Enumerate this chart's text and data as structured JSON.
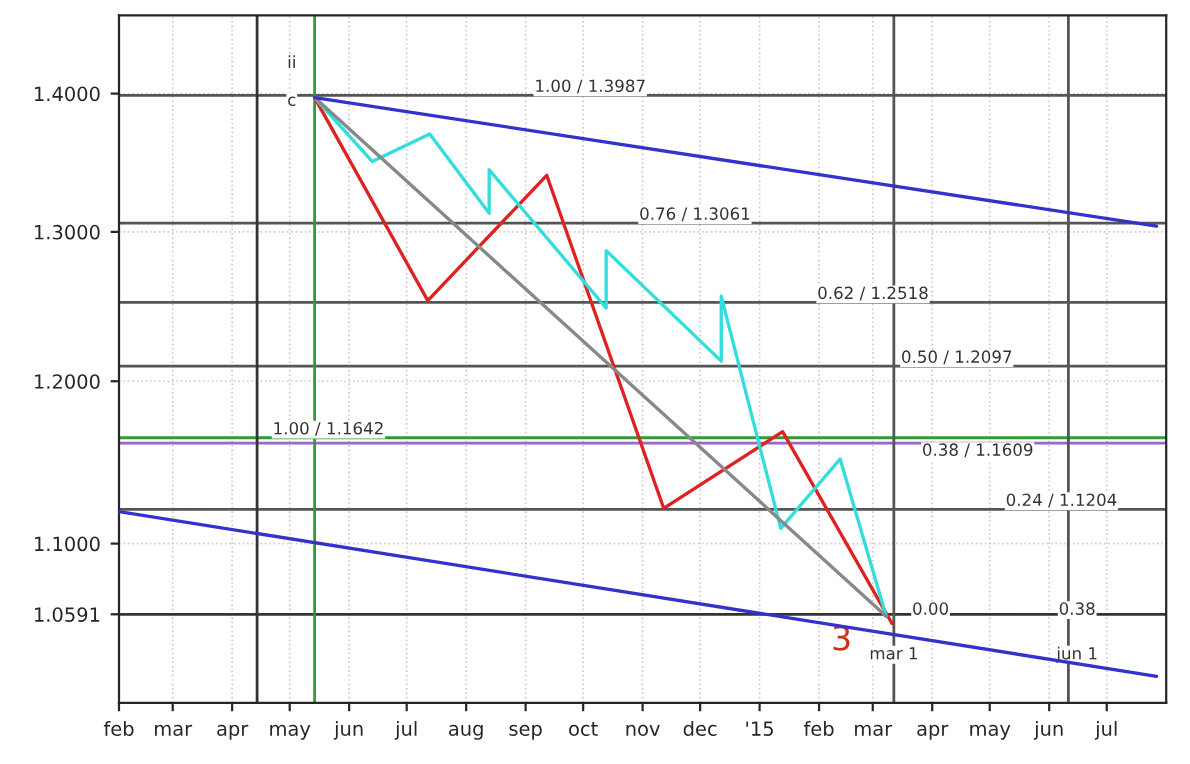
{
  "chart_data": {
    "type": "line",
    "log": "y",
    "grid": true,
    "xlim": [
      "2014-02-01",
      "2015-08-01"
    ],
    "ylim": [
      1.01,
      1.46
    ],
    "xticks": [
      {
        "value": "2014-02-01",
        "label": "feb"
      },
      {
        "value": "2014-03-01",
        "label": "mar"
      },
      {
        "value": "2014-04-01",
        "label": "apr"
      },
      {
        "value": "2014-05-01",
        "label": "may"
      },
      {
        "value": "2014-06-01",
        "label": "jun"
      },
      {
        "value": "2014-07-01",
        "label": "jul"
      },
      {
        "value": "2014-08-01",
        "label": "aug"
      },
      {
        "value": "2014-09-01",
        "label": "sep"
      },
      {
        "value": "2014-10-01",
        "label": "oct"
      },
      {
        "value": "2014-11-01",
        "label": "nov"
      },
      {
        "value": "2014-12-01",
        "label": "dec"
      },
      {
        "value": "2015-01-01",
        "label": "'15"
      },
      {
        "value": "2015-02-01",
        "label": "feb"
      },
      {
        "value": "2015-03-01",
        "label": "mar"
      },
      {
        "value": "2015-04-01",
        "label": "apr"
      },
      {
        "value": "2015-05-01",
        "label": "may"
      },
      {
        "value": "2015-06-01",
        "label": "jun"
      },
      {
        "value": "2015-07-01",
        "label": "jul"
      }
    ],
    "yticks": [
      {
        "value": 1.0591,
        "label": "1.0591"
      },
      {
        "value": 1.1,
        "label": "1.1000"
      },
      {
        "value": 1.2,
        "label": "1.2000"
      },
      {
        "value": 1.3,
        "label": "1.3000"
      },
      {
        "value": 1.4,
        "label": "1.4000"
      }
    ],
    "series": [
      {
        "color": "#3333cc",
        "x": [
          "2014-02-01",
          "2015-07-27"
        ],
        "values": [
          1.119,
          1.0245
        ]
      },
      {
        "color": "#3333cc",
        "x": [
          "2014-05-14",
          "2015-07-27"
        ],
        "values": [
          1.397,
          1.304
        ]
      },
      {
        "color": "#888888",
        "x": [
          "2014-05-14",
          "2015-03-08"
        ],
        "values": [
          1.397,
          1.058
        ]
      },
      {
        "color": "#33dddd",
        "x": [
          "2014-05-14",
          "2014-06-13",
          "2014-07-13",
          "2014-08-13",
          "2014-08-13",
          "2014-10-13",
          "2014-10-13",
          "2014-12-12",
          "2014-12-12",
          "2015-01-12",
          "2015-02-12",
          "2015-03-08"
        ],
        "values": [
          1.397,
          1.35,
          1.37,
          1.313,
          1.344,
          1.248,
          1.287,
          1.213,
          1.256,
          1.109,
          1.151,
          1.058
        ]
      },
      {
        "color": "#dd2222",
        "x": [
          "2014-05-14",
          "2014-07-12",
          "2014-09-12",
          "2014-11-12",
          "2015-01-13",
          "2015-03-11"
        ],
        "values": [
          1.397,
          1.253,
          1.34,
          1.121,
          1.168,
          1.054
        ]
      }
    ],
    "ref_lines": [
      {
        "axis": "y",
        "value": 1.0591,
        "color": "#333333"
      },
      {
        "axis": "y",
        "value": 1.3987,
        "label": "1.00 / 1.3987",
        "color": "#555555"
      },
      {
        "axis": "y",
        "value": 1.3061,
        "label": "0.76 / 1.3061",
        "color": "#555555"
      },
      {
        "axis": "y",
        "value": 1.2518,
        "label": "0.62 / 1.2518",
        "color": "#555555"
      },
      {
        "axis": "y",
        "value": 1.2097,
        "label": "0.50 / 1.2097",
        "color": "#555555"
      },
      {
        "axis": "y",
        "value": 1.1609,
        "label": "0.38 / 1.1609",
        "color": "#9966cc"
      },
      {
        "axis": "y",
        "value": 1.1642,
        "label": "1.00 / 1.1642",
        "color": "#339933"
      },
      {
        "axis": "y",
        "value": 1.1204,
        "label": "0.24 / 1.1204",
        "color": "#555555"
      },
      {
        "axis": "x",
        "value": "2014-04-14",
        "color": "#333333"
      },
      {
        "axis": "x",
        "value": "2014-05-14",
        "color": "#339933"
      },
      {
        "axis": "x",
        "value": "2015-03-12",
        "color": "#555555"
      },
      {
        "axis": "x",
        "value": "2015-06-11",
        "color": "#555555"
      }
    ],
    "annotations": [
      "ii",
      "c",
      "0.00",
      "mar 1",
      "0.38",
      "jun 1",
      "3"
    ]
  }
}
